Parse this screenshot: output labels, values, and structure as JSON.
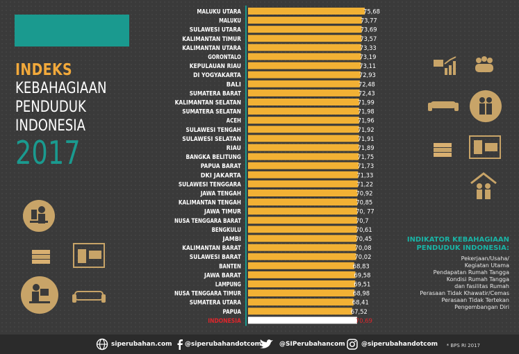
{
  "title": {
    "line1": "INDEKS",
    "line2": "KEBAHAGIAAN",
    "line3": "PENDUDUK",
    "line4": "INDONESIA",
    "year": "2017"
  },
  "colors": {
    "bar": "#f2b134",
    "highlight_bar": "#ffffff",
    "highlight_label": "#e0262c",
    "teal": "#1a9a8f",
    "background": "#3a3a3a"
  },
  "chart_data": {
    "type": "bar",
    "orientation": "horizontal",
    "categories": [
      "MALUKU UTARA",
      "MALUKU",
      "SULAWESI UTARA",
      "KALIMANTAN TIMUR",
      "KALIMANTAN UTARA",
      "GORONTALO",
      "KEPULAUAN RIAU",
      "DI YOGYAKARTA",
      "BALI",
      "SUMATERA BARAT",
      "KALIMANTAN SELATAN",
      "SUMATERA SELATAN",
      "ACEH",
      "SULAWESI TENGAH",
      "SULAWESI SELATAN",
      "RIAU",
      "BANGKA BELITUNG",
      "PAPUA BARAT",
      "DKI JAKARTA",
      "SULAWESI TENGGARA",
      "JAWA TENGAH",
      "KALIMANTAN TENGAH",
      "JAWA TIMUR",
      "NUSA TENGGARA BARAT",
      "BENGKULU",
      "JAMBI",
      "KALIMANTAN BARAT",
      "SULAWESI BARAT",
      "BANTEN",
      "JAWA BARAT",
      "LAMPUNG",
      "NUSA TENGGARA TIMUR",
      "SUMATERA UTARA",
      "PAPUA",
      "INDONESIA"
    ],
    "values": [
      75.68,
      73.77,
      73.69,
      73.57,
      73.33,
      73.19,
      73.11,
      72.93,
      72.48,
      72.43,
      71.99,
      71.98,
      71.96,
      71.92,
      71.91,
      71.89,
      71.75,
      71.73,
      71.33,
      71.22,
      70.92,
      70.85,
      70.77,
      70.7,
      70.61,
      70.45,
      70.08,
      70.02,
      68.83,
      69.58,
      69.51,
      68.98,
      68.41,
      67.52,
      70.69
    ],
    "value_labels": [
      "75,68",
      "73,77",
      "73,69",
      "73,57",
      "73,33",
      "73,19",
      "73,11",
      "72,93",
      "72,48",
      "72,43",
      "71,99",
      "71,98",
      "71,96",
      "71,92",
      "71,91",
      "71,89",
      "71,75",
      "71,73",
      "71,33",
      "71,22",
      "70,92",
      "70,85",
      "70, 77",
      "70,7",
      "70,61",
      "70,45",
      "70,08",
      "70,02",
      "68,83",
      "69,58",
      "69,51",
      "68,98",
      "68,41",
      "67,52",
      "70,69"
    ],
    "highlight": "INDONESIA",
    "xlim": [
      0,
      75.68
    ]
  },
  "indicators": {
    "title_line1": "INDIKATOR KEBAHAGIAAN",
    "title_line2": "PENDUDUK INDONESIA:",
    "items": [
      "Pekerjaan/Usaha/",
      "Kegiatan Utama",
      "Pendapatan Rumah Tangga",
      "Kondisi Rumah Tangga",
      "dan fasilitas Rumah",
      "Perasaan Tidak Khawatir/Cemas",
      "Perasaan Tidak Tertekan",
      "Pengembangan Diri"
    ]
  },
  "footer": {
    "website": "siperubahan.com",
    "facebook": "@siperubahandotcom",
    "twitter": "@SIPerubahancom",
    "instagram": "@siperubahandotcom",
    "source": "* BPS RI 2017"
  }
}
